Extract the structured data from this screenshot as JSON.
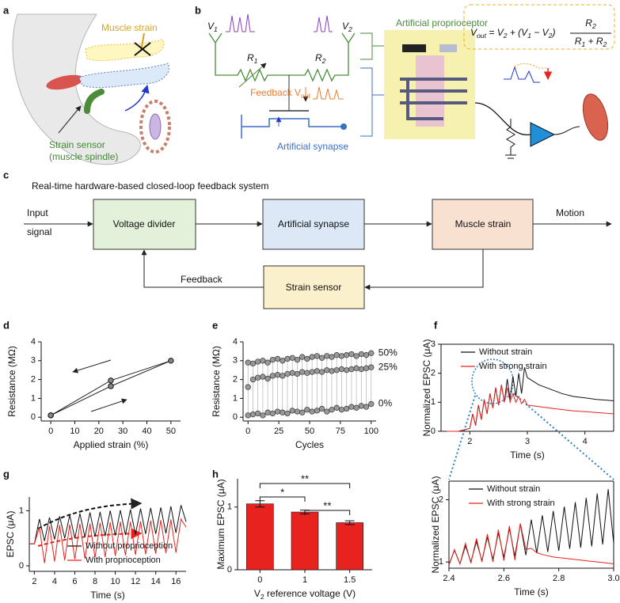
{
  "panel_labels": [
    "a",
    "b",
    "c",
    "d",
    "e",
    "f",
    "g",
    "h"
  ],
  "illustration": {
    "muscle_strain": "Muscle strain",
    "sensor": [
      "Strain sensor",
      "(muscle spindle)"
    ]
  },
  "circuit": {
    "proprioceptor": "Artificial proprioceptor",
    "v1": [
      {
        "t": "V"
      },
      {
        "s": "1"
      }
    ],
    "v2": [
      {
        "t": "V"
      },
      {
        "s": "2"
      }
    ],
    "r1": [
      {
        "t": "R"
      },
      {
        "s": "1"
      }
    ],
    "r2": [
      {
        "t": "R"
      },
      {
        "s": "2"
      }
    ],
    "feedback": [
      {
        "t": "Feedback V"
      },
      {
        "s": "out"
      }
    ],
    "synapse": "Artificial synapse",
    "formula": [
      {
        "t": "V"
      },
      {
        "s": "out"
      },
      {
        "t": " = V"
      },
      {
        "s": "2"
      },
      {
        "t": " + (V"
      },
      {
        "s": "1"
      },
      {
        "t": " − V"
      },
      {
        "s": "2"
      },
      {
        "t": ")"
      }
    ],
    "numerator": [
      {
        "t": "R"
      },
      {
        "s": "2"
      }
    ],
    "denominator": [
      {
        "t": "R"
      },
      {
        "s": "1"
      },
      {
        "t": " + R"
      },
      {
        "s": "2"
      }
    ]
  },
  "flow": {
    "title": "Real-time hardware-based closed-loop feedback system",
    "boxes": [
      "Voltage divider",
      "Artificial synapse",
      "Muscle strain",
      "Strain sensor"
    ],
    "input": [
      "Input",
      "signal"
    ],
    "output": "Motion",
    "feedback": "Feedback"
  },
  "chart_data": [
    {
      "type": "line",
      "markers": true,
      "x": [
        0,
        25,
        50,
        25,
        0
      ],
      "series": [
        {
          "name": null,
          "color": "#222222",
          "values": [
            0.1,
            1.65,
            3.0,
            1.95,
            0.1
          ]
        }
      ],
      "xlim": [
        -4,
        54
      ],
      "ylim": [
        -0.2,
        4
      ],
      "xticks": [
        0,
        10,
        20,
        30,
        40,
        50
      ],
      "yticks": [
        0,
        1,
        2,
        3,
        4
      ],
      "xlabel": "Applied strain (%)",
      "ylabel": "Resistance (MΩ)"
    },
    {
      "type": "scatter",
      "x": [
        0,
        4,
        8,
        12,
        16,
        20,
        24,
        28,
        32,
        36,
        40,
        44,
        48,
        52,
        56,
        60,
        64,
        68,
        72,
        76,
        80,
        84,
        88,
        92,
        96,
        100
      ],
      "series": [
        {
          "name": "0%",
          "color": "#333333",
          "values": [
            0.1,
            0.15,
            0.2,
            0.1,
            0.25,
            0.2,
            0.3,
            0.25,
            0.2,
            0.35,
            0.3,
            0.25,
            0.4,
            0.3,
            0.35,
            0.45,
            0.3,
            0.4,
            0.5,
            0.4,
            0.45,
            0.55,
            0.5,
            0.6,
            0.55,
            0.7
          ]
        },
        {
          "name": "25%",
          "color": "#333333",
          "values": [
            1.6,
            2.0,
            2.1,
            2.15,
            2.05,
            2.2,
            2.25,
            2.2,
            2.3,
            2.35,
            2.3,
            2.4,
            2.35,
            2.4,
            2.45,
            2.4,
            2.5,
            2.45,
            2.5,
            2.55,
            2.5,
            2.55,
            2.6,
            2.55,
            2.6,
            2.65
          ]
        },
        {
          "name": "50%",
          "color": "#333333",
          "values": [
            2.9,
            2.85,
            2.95,
            3.0,
            2.9,
            3.05,
            3.1,
            3.0,
            3.1,
            3.15,
            3.05,
            3.2,
            3.1,
            3.2,
            3.25,
            3.15,
            3.25,
            3.2,
            3.3,
            3.25,
            3.3,
            3.35,
            3.25,
            3.35,
            3.3,
            3.4
          ]
        }
      ],
      "xlim": [
        -4,
        104
      ],
      "ylim": [
        -0.2,
        4
      ],
      "xticks": [
        0,
        25,
        50,
        75,
        100
      ],
      "yticks": [
        0,
        1,
        2,
        3,
        4
      ],
      "xlabel": "Cycles",
      "ylabel": "Resistance (MΩ)"
    },
    {
      "type": "line",
      "box": true,
      "legend": "upper left",
      "x": [
        1.6,
        1.8,
        1.9,
        2.0,
        2.05,
        2.1,
        2.15,
        2.2,
        2.25,
        2.3,
        2.35,
        2.4,
        2.45,
        2.5,
        2.55,
        2.6,
        2.65,
        2.7,
        2.75,
        2.8,
        2.85,
        2.9,
        2.95,
        3.0,
        3.2,
        3.4,
        3.6,
        3.8,
        4.0,
        4.2,
        4.5
      ],
      "series": [
        {
          "name": "Without strain",
          "color": "#111111",
          "values": [
            0,
            0,
            0.05,
            0.1,
            0.6,
            0.2,
            0.9,
            0.4,
            1.1,
            0.6,
            1.3,
            0.8,
            1.5,
            0.9,
            1.6,
            1.0,
            1.8,
            1.1,
            1.9,
            1.2,
            2.0,
            1.3,
            2.2,
            1.85,
            1.6,
            1.45,
            1.3,
            1.2,
            1.15,
            1.1,
            1.05
          ]
        },
        {
          "name": "With strong strain",
          "color": "#e8231f",
          "values": [
            0,
            0,
            0.05,
            0.1,
            0.6,
            0.2,
            0.9,
            0.4,
            1.1,
            0.6,
            1.3,
            0.8,
            1.5,
            0.9,
            1.6,
            1.0,
            1.5,
            1.0,
            1.3,
            1.0,
            1.2,
            0.95,
            1.1,
            0.9,
            0.85,
            0.8,
            0.75,
            0.7,
            0.68,
            0.65,
            0.6
          ]
        }
      ],
      "xlim": [
        1.5,
        4.5
      ],
      "ylim": [
        0,
        3
      ],
      "xticks": [
        2,
        3,
        4
      ],
      "yticks": [
        0,
        1,
        2,
        3
      ],
      "xlabel": "Time (s)",
      "ylabel": "Normalized EPSC (μA)"
    },
    {
      "type": "line",
      "box": true,
      "legend": "upper left",
      "x": [
        2.4,
        2.42,
        2.44,
        2.46,
        2.48,
        2.5,
        2.52,
        2.54,
        2.56,
        2.58,
        2.6,
        2.62,
        2.64,
        2.66,
        2.68,
        2.7,
        2.72,
        2.74,
        2.76,
        2.78,
        2.8,
        2.82,
        2.84,
        2.86,
        2.88,
        2.9,
        2.92,
        2.94,
        2.96,
        2.98,
        3.0
      ],
      "series": [
        {
          "name": "Without strain",
          "color": "#111111",
          "values": [
            0.95,
            1.19,
            0.97,
            1.26,
            1.0,
            1.33,
            1.02,
            1.4,
            1.04,
            1.47,
            1.07,
            1.54,
            1.09,
            1.61,
            1.11,
            1.68,
            1.14,
            1.75,
            1.16,
            1.82,
            1.18,
            1.89,
            1.21,
            1.96,
            1.23,
            2.03,
            1.25,
            2.1,
            1.28,
            2.17,
            1.3
          ]
        },
        {
          "name": "With strong strain",
          "color": "#e8231f",
          "values": [
            0.95,
            1.2,
            0.97,
            1.3,
            0.98,
            1.38,
            1.0,
            1.45,
            1.0,
            1.52,
            1.02,
            1.58,
            1.03,
            1.62,
            1.2,
            1.22,
            1.15,
            1.12,
            1.1,
            1.08,
            1.07,
            1.06,
            1.05,
            1.04,
            1.03,
            1.02,
            1.01,
            1.0,
            0.99,
            0.98,
            0.97
          ]
        }
      ],
      "xlim": [
        2.4,
        3.0
      ],
      "ylim": [
        0.9,
        2.3
      ],
      "xticks": [
        2.4,
        2.6,
        2.8,
        {
          "value": 3,
          "label": "3.0"
        }
      ],
      "yticks": [
        1,
        2
      ],
      "xlabel": "Time (s)",
      "ylabel": "Normalized EPSC (μA)"
    },
    {
      "type": "line",
      "legend": "lower right",
      "x": [
        1.5,
        2,
        2.5,
        3,
        3.5,
        4,
        4.5,
        5,
        5.5,
        6,
        6.5,
        7,
        7.5,
        8,
        8.5,
        9,
        9.5,
        10,
        10.5,
        11,
        11.5,
        12,
        12.5,
        13,
        13.5,
        14,
        14.5,
        15,
        15.5,
        16,
        16.5,
        17
      ],
      "series": [
        {
          "name": "Without proprioception",
          "color": "#111111",
          "values": [
            0.4,
            0.4,
            0.85,
            0.45,
            0.88,
            0.48,
            0.9,
            0.5,
            0.92,
            0.5,
            0.95,
            0.52,
            0.97,
            0.53,
            0.98,
            0.54,
            1.0,
            0.55,
            1.01,
            0.56,
            1.02,
            0.57,
            1.04,
            0.58,
            1.05,
            0.58,
            1.06,
            0.59,
            1.08,
            0.6,
            1.1,
            0.8
          ]
        },
        {
          "name": "With proprioception",
          "color": "#e8231f",
          "values": [
            0.4,
            0.4,
            0.7,
            0.05,
            0.72,
            0.08,
            0.74,
            0.1,
            0.75,
            0.12,
            0.76,
            0.13,
            0.77,
            0.15,
            0.78,
            0.16,
            0.79,
            0.18,
            0.8,
            0.19,
            0.8,
            0.2,
            0.81,
            0.21,
            0.82,
            0.22,
            0.83,
            0.23,
            0.84,
            0.24,
            0.85,
            0.7
          ]
        }
      ],
      "xlim": [
        1.5,
        17
      ],
      "ylim": [
        -0.1,
        1.25
      ],
      "xticks": [
        2,
        4,
        6,
        8,
        10,
        12,
        14,
        16
      ],
      "yticks": [
        0,
        1
      ],
      "xlabel": "Time (s)",
      "ylabel": "EPSC (μA)"
    },
    {
      "type": "bar",
      "categories": [
        "0",
        "1",
        "1.5"
      ],
      "values": [
        1.05,
        0.92,
        0.75
      ],
      "errors": [
        0.05,
        0.03,
        0.03
      ],
      "color": "#e8231f",
      "ylim": [
        0,
        1.45
      ],
      "yticks": [
        0,
        1
      ],
      "significance": [
        {
          "between": [
            "0",
            "1.5"
          ],
          "label": "**"
        },
        {
          "between": [
            "0",
            "1"
          ],
          "label": "*"
        },
        {
          "between": [
            "1",
            "1.5"
          ],
          "label": "**"
        }
      ],
      "xlabel": [
        {
          "t": "V"
        },
        {
          "s": "2"
        },
        {
          "t": " reference voltage (V)"
        }
      ],
      "ylabel": "Maximum EPSC (μA)"
    }
  ]
}
